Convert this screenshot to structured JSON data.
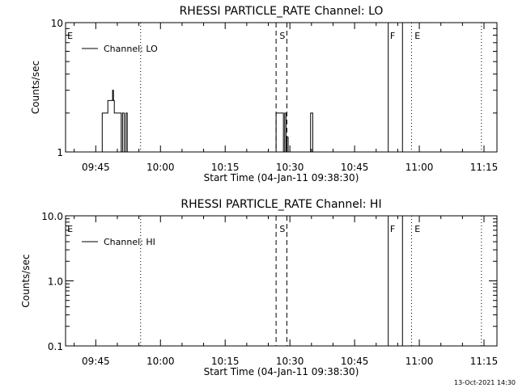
{
  "timestamp": "13-Oct-2021 14:30",
  "chart_data": [
    {
      "type": "line",
      "title": "RHESSI PARTICLE_RATE Channel: LO",
      "xlabel": "Start Time (04-Jan-11 09:38:30)",
      "ylabel": "Counts/sec",
      "yscale": "log",
      "xlim_min": [
        0,
        100
      ],
      "ylim": [
        1,
        10
      ],
      "xticks": [
        {
          "min": 7,
          "label": "09:45"
        },
        {
          "min": 22,
          "label": "10:00"
        },
        {
          "min": 37,
          "label": "10:15"
        },
        {
          "min": 52,
          "label": "10:30"
        },
        {
          "min": 67,
          "label": "10:45"
        },
        {
          "min": 82,
          "label": "11:00"
        },
        {
          "min": 97,
          "label": "11:15"
        }
      ],
      "yticks": [
        {
          "value": 1,
          "label": "1"
        },
        {
          "value": 10,
          "label": "10"
        }
      ],
      "legend": {
        "label": "Channel: LO",
        "placement": "top-left"
      },
      "markers": [
        {
          "min": 17.4,
          "style": "dotted"
        },
        {
          "min": 48.8,
          "style": "dashed"
        },
        {
          "min": 51.3,
          "style": "dashed"
        },
        {
          "min": 74.8,
          "style": "solid"
        },
        {
          "min": 78.1,
          "style": "solid"
        },
        {
          "min": 80.2,
          "style": "dotted"
        },
        {
          "min": 96.4,
          "style": "dotted"
        }
      ],
      "marker_labels": [
        {
          "min": 0.4,
          "label": "E"
        },
        {
          "min": 49.6,
          "label": "S"
        },
        {
          "min": 75.2,
          "label": "F"
        },
        {
          "min": 80.9,
          "label": "E"
        }
      ],
      "series": [
        {
          "name": "Channel: LO",
          "x": [
            8.5,
            8.5,
            9.8,
            9.8,
            10.9,
            10.9,
            11.1,
            11.1,
            11.3,
            11.3,
            12.9,
            12.9,
            13.2,
            13.2,
            13.6,
            13.6,
            14.0,
            14.0,
            14.3,
            14.3,
            48.8,
            48.8,
            50.5,
            50.5,
            50.8,
            50.8,
            51.1,
            51.1,
            51.3,
            51.3,
            51.6,
            51.6,
            56.8,
            56.8,
            57.0,
            57.0,
            57.3,
            57.3
          ],
          "y": [
            1,
            2,
            2,
            2.5,
            2.5,
            3,
            3,
            2.5,
            2.5,
            2,
            2,
            1,
            1,
            2,
            2,
            1,
            1,
            2,
            2,
            1,
            1,
            2,
            2,
            1,
            1,
            2,
            2,
            1,
            1,
            1.3,
            1.3,
            1,
            1,
            2,
            2,
            2,
            2,
            1
          ]
        }
      ]
    },
    {
      "type": "line",
      "title": "RHESSI PARTICLE_RATE Channel: HI",
      "xlabel": "Start Time (04-Jan-11 09:38:30)",
      "ylabel": "Counts/sec",
      "yscale": "log",
      "xlim_min": [
        0,
        100
      ],
      "ylim": [
        0.1,
        10
      ],
      "xticks": [
        {
          "min": 7,
          "label": "09:45"
        },
        {
          "min": 22,
          "label": "10:00"
        },
        {
          "min": 37,
          "label": "10:15"
        },
        {
          "min": 52,
          "label": "10:30"
        },
        {
          "min": 67,
          "label": "10:45"
        },
        {
          "min": 82,
          "label": "11:00"
        },
        {
          "min": 97,
          "label": "11:15"
        }
      ],
      "yticks": [
        {
          "value": 0.1,
          "label": "0.1"
        },
        {
          "value": 1,
          "label": "1.0"
        },
        {
          "value": 10,
          "label": "10.0"
        }
      ],
      "legend": {
        "label": "Channel: HI",
        "placement": "top-left"
      },
      "markers": [
        {
          "min": 17.4,
          "style": "dotted"
        },
        {
          "min": 48.8,
          "style": "dashed"
        },
        {
          "min": 51.3,
          "style": "dashed"
        },
        {
          "min": 74.8,
          "style": "solid"
        },
        {
          "min": 78.1,
          "style": "solid"
        },
        {
          "min": 80.2,
          "style": "dotted"
        },
        {
          "min": 96.4,
          "style": "dotted"
        }
      ],
      "marker_labels": [
        {
          "min": 0.4,
          "label": "E"
        },
        {
          "min": 49.6,
          "label": "S"
        },
        {
          "min": 75.2,
          "label": "F"
        },
        {
          "min": 80.9,
          "label": "E"
        }
      ],
      "series": [
        {
          "name": "Channel: HI",
          "x": [],
          "y": []
        }
      ]
    }
  ]
}
